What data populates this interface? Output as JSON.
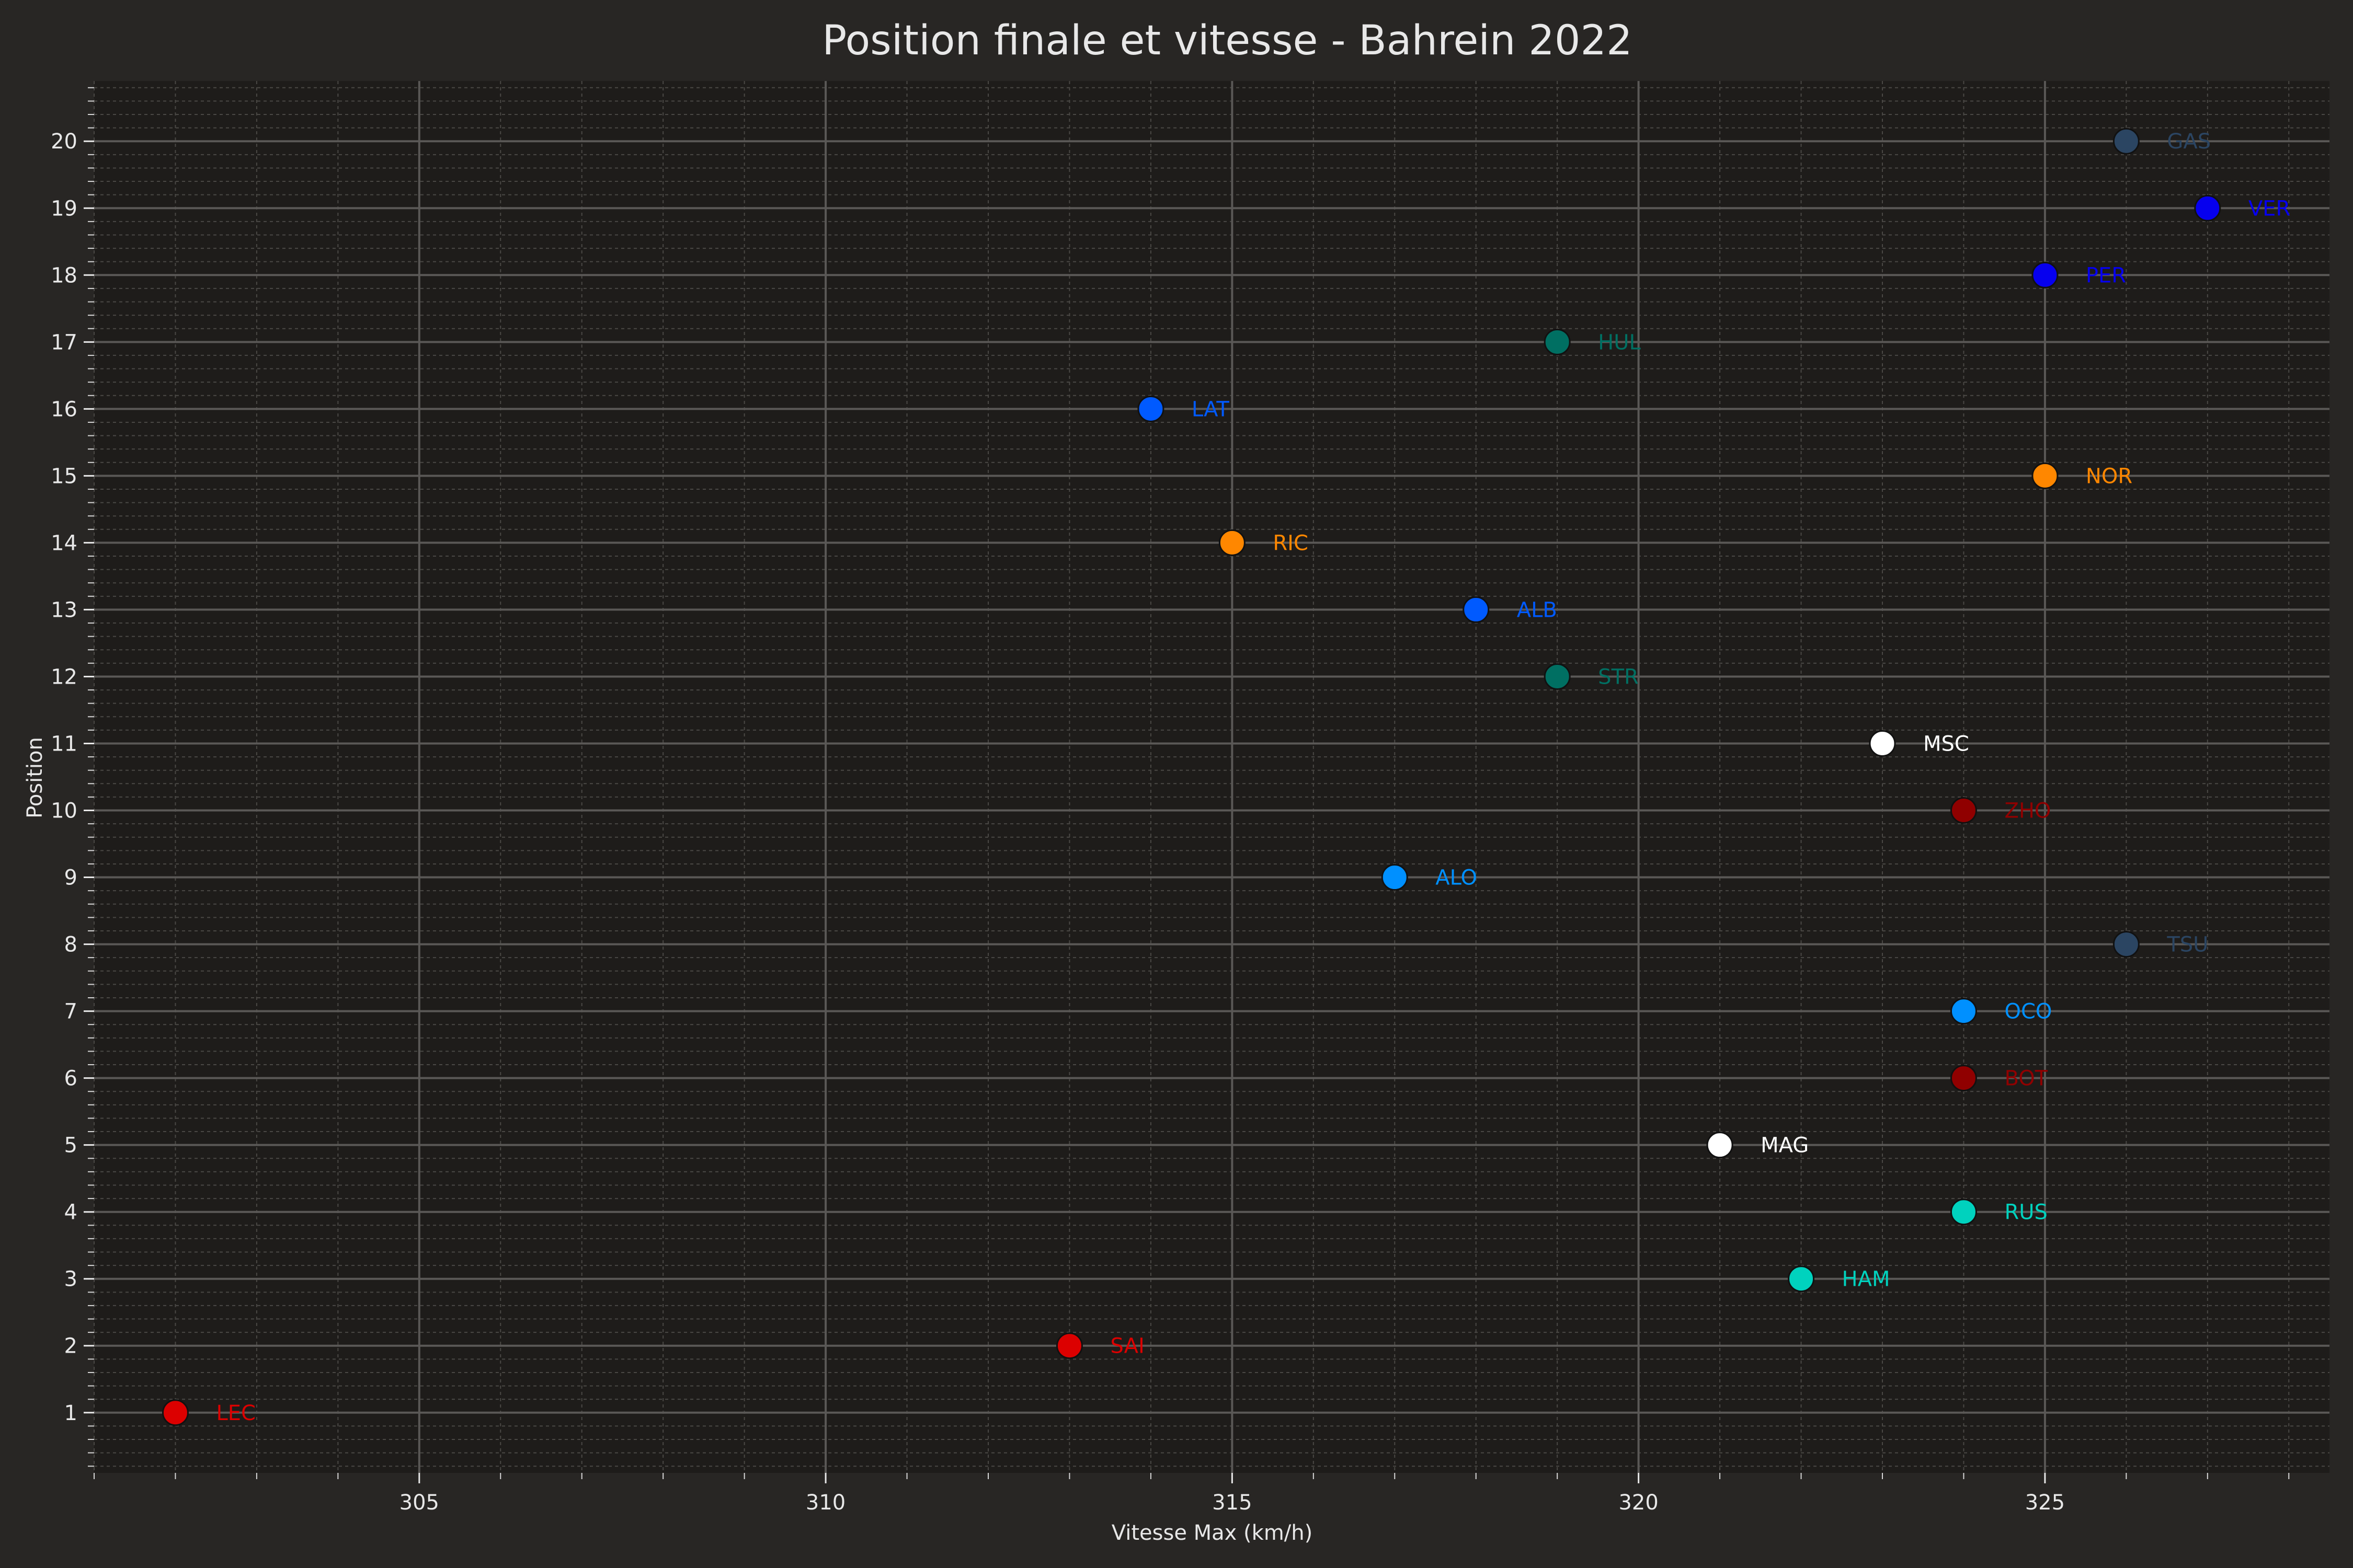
{
  "chart_data": {
    "type": "scatter",
    "title": "Position finale et vitesse - Bahrein 2022",
    "xlabel": "Vitesse Max (km/h)",
    "ylabel": "Position",
    "xlim": [
      301,
      328.5
    ],
    "ylim": [
      0.1,
      20.9
    ],
    "x_ticks": [
      305,
      310,
      315,
      320,
      325
    ],
    "y_ticks": [
      1,
      2,
      3,
      4,
      5,
      6,
      7,
      8,
      9,
      10,
      11,
      12,
      13,
      14,
      15,
      16,
      17,
      18,
      19,
      20
    ],
    "grid": true,
    "minor_grid": true,
    "background": "#1e1c1a",
    "points": [
      {
        "label": "LEC",
        "x": 302,
        "y": 1,
        "color": "#dc0000"
      },
      {
        "label": "SAI",
        "x": 313,
        "y": 2,
        "color": "#dc0000"
      },
      {
        "label": "HAM",
        "x": 322,
        "y": 3,
        "color": "#00d2be"
      },
      {
        "label": "RUS",
        "x": 324,
        "y": 4,
        "color": "#00d2be"
      },
      {
        "label": "MAG",
        "x": 321,
        "y": 5,
        "color": "#ffffff"
      },
      {
        "label": "BOT",
        "x": 324,
        "y": 6,
        "color": "#900000"
      },
      {
        "label": "OCO",
        "x": 324,
        "y": 7,
        "color": "#0090ff"
      },
      {
        "label": "TSU",
        "x": 326,
        "y": 8,
        "color": "#2b4562"
      },
      {
        "label": "ALO",
        "x": 317,
        "y": 9,
        "color": "#0090ff"
      },
      {
        "label": "ZHO",
        "x": 324,
        "y": 10,
        "color": "#900000"
      },
      {
        "label": "MSC",
        "x": 323,
        "y": 11,
        "color": "#ffffff"
      },
      {
        "label": "STR",
        "x": 319,
        "y": 12,
        "color": "#006f62"
      },
      {
        "label": "ALB",
        "x": 318,
        "y": 13,
        "color": "#005aff"
      },
      {
        "label": "RIC",
        "x": 315,
        "y": 14,
        "color": "#ff8700"
      },
      {
        "label": "NOR",
        "x": 325,
        "y": 15,
        "color": "#ff8700"
      },
      {
        "label": "LAT",
        "x": 314,
        "y": 16,
        "color": "#005aff"
      },
      {
        "label": "HUL",
        "x": 319,
        "y": 17,
        "color": "#006f62"
      },
      {
        "label": "PER",
        "x": 325,
        "y": 18,
        "color": "#0600ef"
      },
      {
        "label": "VER",
        "x": 327,
        "y": 19,
        "color": "#0600ef"
      },
      {
        "label": "GAS",
        "x": 326,
        "y": 20,
        "color": "#2b4562"
      }
    ]
  }
}
